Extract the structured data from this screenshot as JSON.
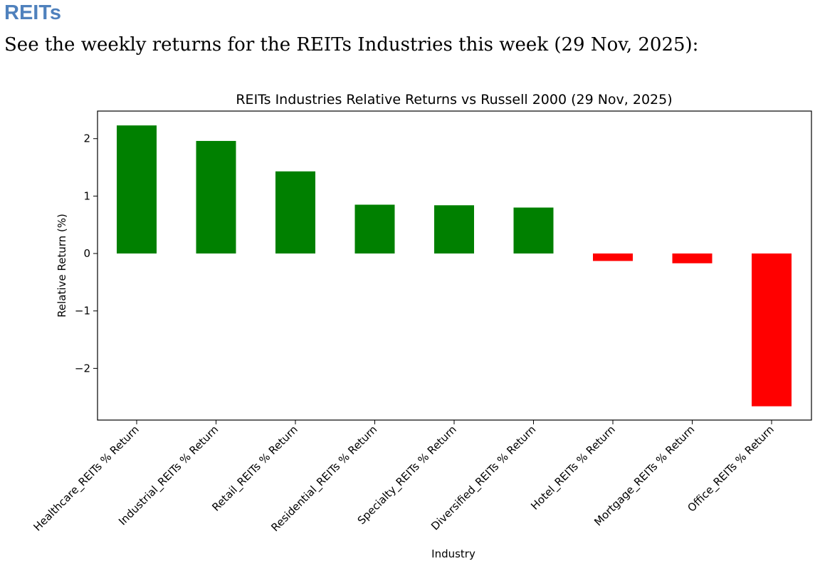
{
  "document": {
    "heading": "REITs",
    "intro": "See the weekly returns for the REITs Industries this week (29 Nov, 2025):"
  },
  "colors": {
    "positive": "#008000",
    "negative": "#ff0000",
    "heading": "#4f81bd"
  },
  "chart_data": {
    "type": "bar",
    "title": "REITs Industries Relative Returns vs Russell 2000 (29 Nov, 2025)",
    "xlabel": "Industry",
    "ylabel": "Relative Return (%)",
    "categories": [
      "Healthcare_REITs % Return",
      "Industrial_REITs % Return",
      "Retail_REITs % Return",
      "Residential_REITs % Return",
      "Specialty_REITs % Return",
      "Diversified_REITs % Return",
      "Hotel_REITs % Return",
      "Mortgage_REITs % Return",
      "Office_REITs % Return"
    ],
    "values": [
      2.23,
      1.96,
      1.43,
      0.85,
      0.84,
      0.8,
      -0.13,
      -0.17,
      -2.66
    ],
    "ylim": [
      -2.9,
      2.48
    ],
    "yticks": [
      2,
      1,
      0,
      -1,
      -2
    ],
    "ytick_labels": [
      "2",
      "1",
      "0",
      "−1",
      "−2"
    ],
    "grid": false,
    "legend": "none"
  }
}
